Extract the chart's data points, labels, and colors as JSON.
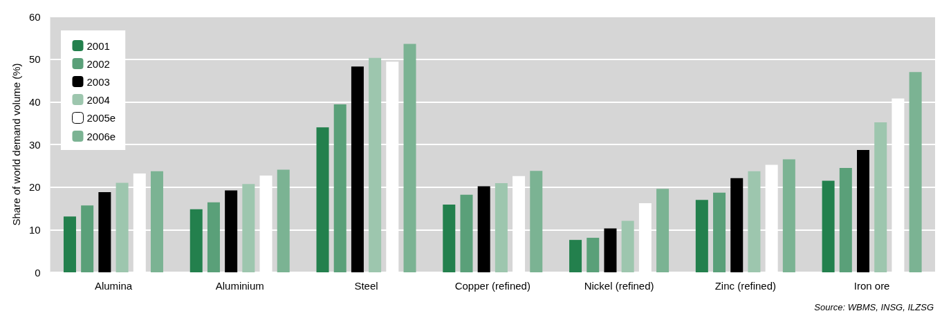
{
  "chart_data": {
    "type": "bar",
    "ylabel": "Share of world demand volume (%)",
    "categories": [
      "Alumina",
      "Aluminium",
      "Steel",
      "Copper (refined)",
      "Nickel (refined)",
      "Zinc (refined)",
      "Iron ore"
    ],
    "series": [
      {
        "name": "2001",
        "color": "#23804d",
        "values": [
          13.1,
          14.8,
          34.0,
          15.9,
          7.6,
          17.0,
          21.5
        ]
      },
      {
        "name": "2002",
        "color": "#5aa079",
        "values": [
          15.7,
          16.4,
          39.4,
          18.2,
          8.1,
          18.7,
          24.5
        ]
      },
      {
        "name": "2003",
        "color": "#000000",
        "values": [
          18.8,
          19.2,
          48.3,
          20.2,
          10.3,
          22.1,
          28.7
        ]
      },
      {
        "name": "2004",
        "color": "#9dc6ae",
        "values": [
          21.0,
          20.7,
          50.3,
          20.9,
          12.1,
          23.7,
          35.2
        ]
      },
      {
        "name": "2005e",
        "color": "#ffffff",
        "values": [
          23.2,
          22.7,
          49.4,
          22.6,
          16.2,
          25.2,
          40.8
        ]
      },
      {
        "name": "2006e",
        "color": "#7bb393",
        "values": [
          23.7,
          24.1,
          53.6,
          23.8,
          19.6,
          26.5,
          47.0
        ]
      }
    ],
    "ylim": [
      0,
      60
    ],
    "yticks": [
      0,
      10,
      20,
      30,
      40,
      50,
      60
    ],
    "grid": "y",
    "legend": "top left",
    "annotations": [
      "Source: WBMS, INSG, ILZSG"
    ]
  }
}
